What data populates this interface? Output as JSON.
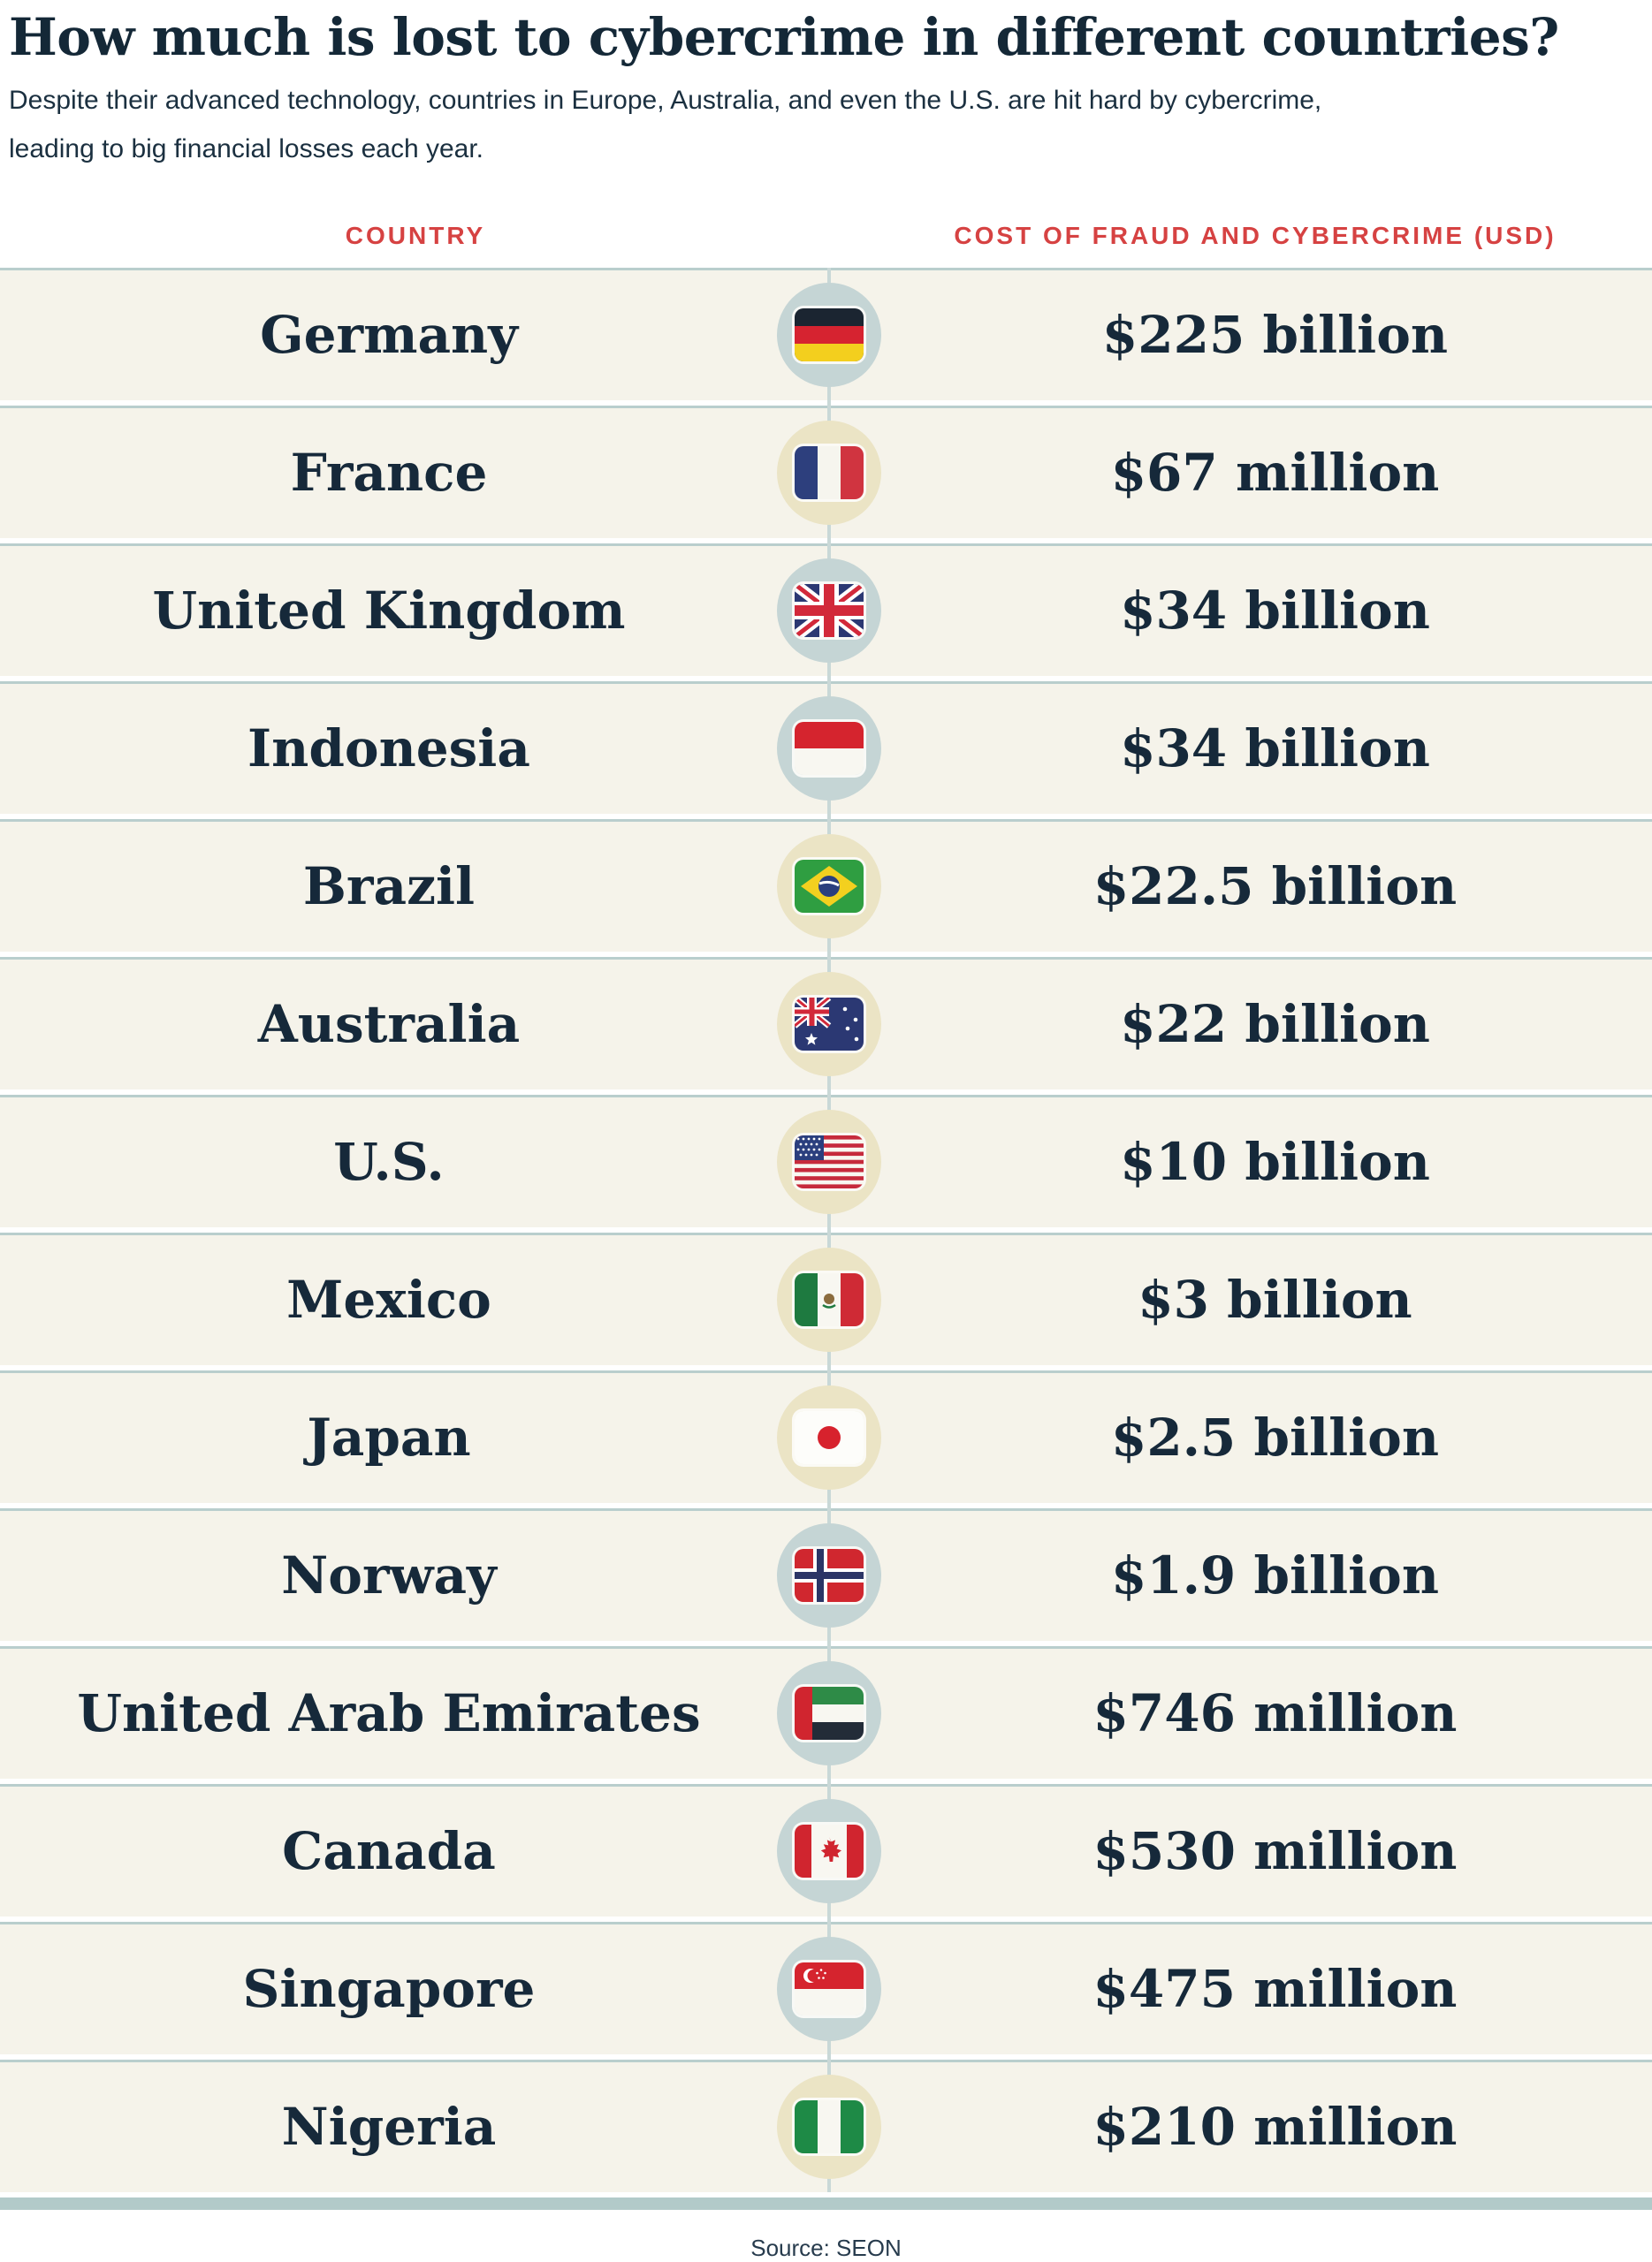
{
  "header": {
    "title": "How much is lost to cybercrime in different countries?",
    "subtitle": "Despite their advanced technology, countries in Europe, Australia, and even the U.S. are hit hard by cybercrime, leading to big financial losses each year."
  },
  "table": {
    "col_country": "COUNTRY",
    "col_cost": "COST OF FRAUD AND CYBERCRIME (USD)",
    "rows": [
      {
        "country": "Germany",
        "flag": "germany",
        "flag_icon": "germany-flag-icon",
        "circle": "blue",
        "value": "$225 billion"
      },
      {
        "country": "France",
        "flag": "france",
        "flag_icon": "france-flag-icon",
        "circle": "beige",
        "value": "$67 million"
      },
      {
        "country": "United Kingdom",
        "flag": "uk",
        "flag_icon": "uk-flag-icon",
        "circle": "blue",
        "value": "$34 billion"
      },
      {
        "country": "Indonesia",
        "flag": "indonesia",
        "flag_icon": "indonesia-flag-icon",
        "circle": "blue",
        "value": "$34 billion"
      },
      {
        "country": "Brazil",
        "flag": "brazil",
        "flag_icon": "brazil-flag-icon",
        "circle": "beige",
        "value": "$22.5 billion"
      },
      {
        "country": "Australia",
        "flag": "australia",
        "flag_icon": "australia-flag-icon",
        "circle": "beige",
        "value": "$22 billion"
      },
      {
        "country": "U.S.",
        "flag": "us",
        "flag_icon": "us-flag-icon",
        "circle": "beige",
        "value": "$10 billion"
      },
      {
        "country": "Mexico",
        "flag": "mexico",
        "flag_icon": "mexico-flag-icon",
        "circle": "beige",
        "value": "$3 billion"
      },
      {
        "country": "Japan",
        "flag": "japan",
        "flag_icon": "japan-flag-icon",
        "circle": "beige",
        "value": "$2.5 billion"
      },
      {
        "country": "Norway",
        "flag": "norway",
        "flag_icon": "norway-flag-icon",
        "circle": "blue",
        "value": "$1.9 billion"
      },
      {
        "country": "United Arab Emirates",
        "flag": "uae",
        "flag_icon": "uae-flag-icon",
        "circle": "blue",
        "value": "$746 million"
      },
      {
        "country": "Canada",
        "flag": "canada",
        "flag_icon": "canada-flag-icon",
        "circle": "blue",
        "value": "$530 million"
      },
      {
        "country": "Singapore",
        "flag": "singapore",
        "flag_icon": "singapore-flag-icon",
        "circle": "blue",
        "value": "$475 million"
      },
      {
        "country": "Nigeria",
        "flag": "nigeria",
        "flag_icon": "nigeria-flag-icon",
        "circle": "beige",
        "value": "$210 million"
      }
    ]
  },
  "footer": {
    "source": "Source: SEON"
  },
  "colors": {
    "accent_red": "#d64242",
    "navy_text": "#16293a",
    "row_background": "#f5f3ea",
    "circle_blue": "#c5d5d5",
    "circle_beige": "#ebe4c5",
    "separator_line": "#b9cecd",
    "bottom_bar": "#b2cac9",
    "page_background": "#ffffff"
  },
  "chart_data": {
    "type": "table",
    "title": "How much is lost to cybercrime in different countries?",
    "subtitle": "Despite their advanced technology, countries in Europe, Australia, and even the U.S. are hit hard by cybercrime, leading to big financial losses each year.",
    "columns": [
      "Country",
      "Cost of fraud and cybercrime (USD)"
    ],
    "rows": [
      [
        "Germany",
        "$225 billion"
      ],
      [
        "France",
        "$67 million"
      ],
      [
        "United Kingdom",
        "$34 billion"
      ],
      [
        "Indonesia",
        "$34 billion"
      ],
      [
        "Brazil",
        "$22.5 billion"
      ],
      [
        "Australia",
        "$22 billion"
      ],
      [
        "U.S.",
        "$10 billion"
      ],
      [
        "Mexico",
        "$3 billion"
      ],
      [
        "Japan",
        "$2.5 billion"
      ],
      [
        "Norway",
        "$1.9 billion"
      ],
      [
        "United Arab Emirates",
        "$746 million"
      ],
      [
        "Canada",
        "$530 million"
      ],
      [
        "Singapore",
        "$475 million"
      ],
      [
        "Nigeria",
        "$210 million"
      ]
    ],
    "values_usd": [
      225000000000,
      67000000,
      34000000000,
      34000000000,
      22500000000,
      22000000000,
      10000000000,
      3000000000,
      2500000000,
      1900000000,
      746000000,
      530000000,
      475000000,
      210000000
    ],
    "source": "Source: SEON"
  }
}
